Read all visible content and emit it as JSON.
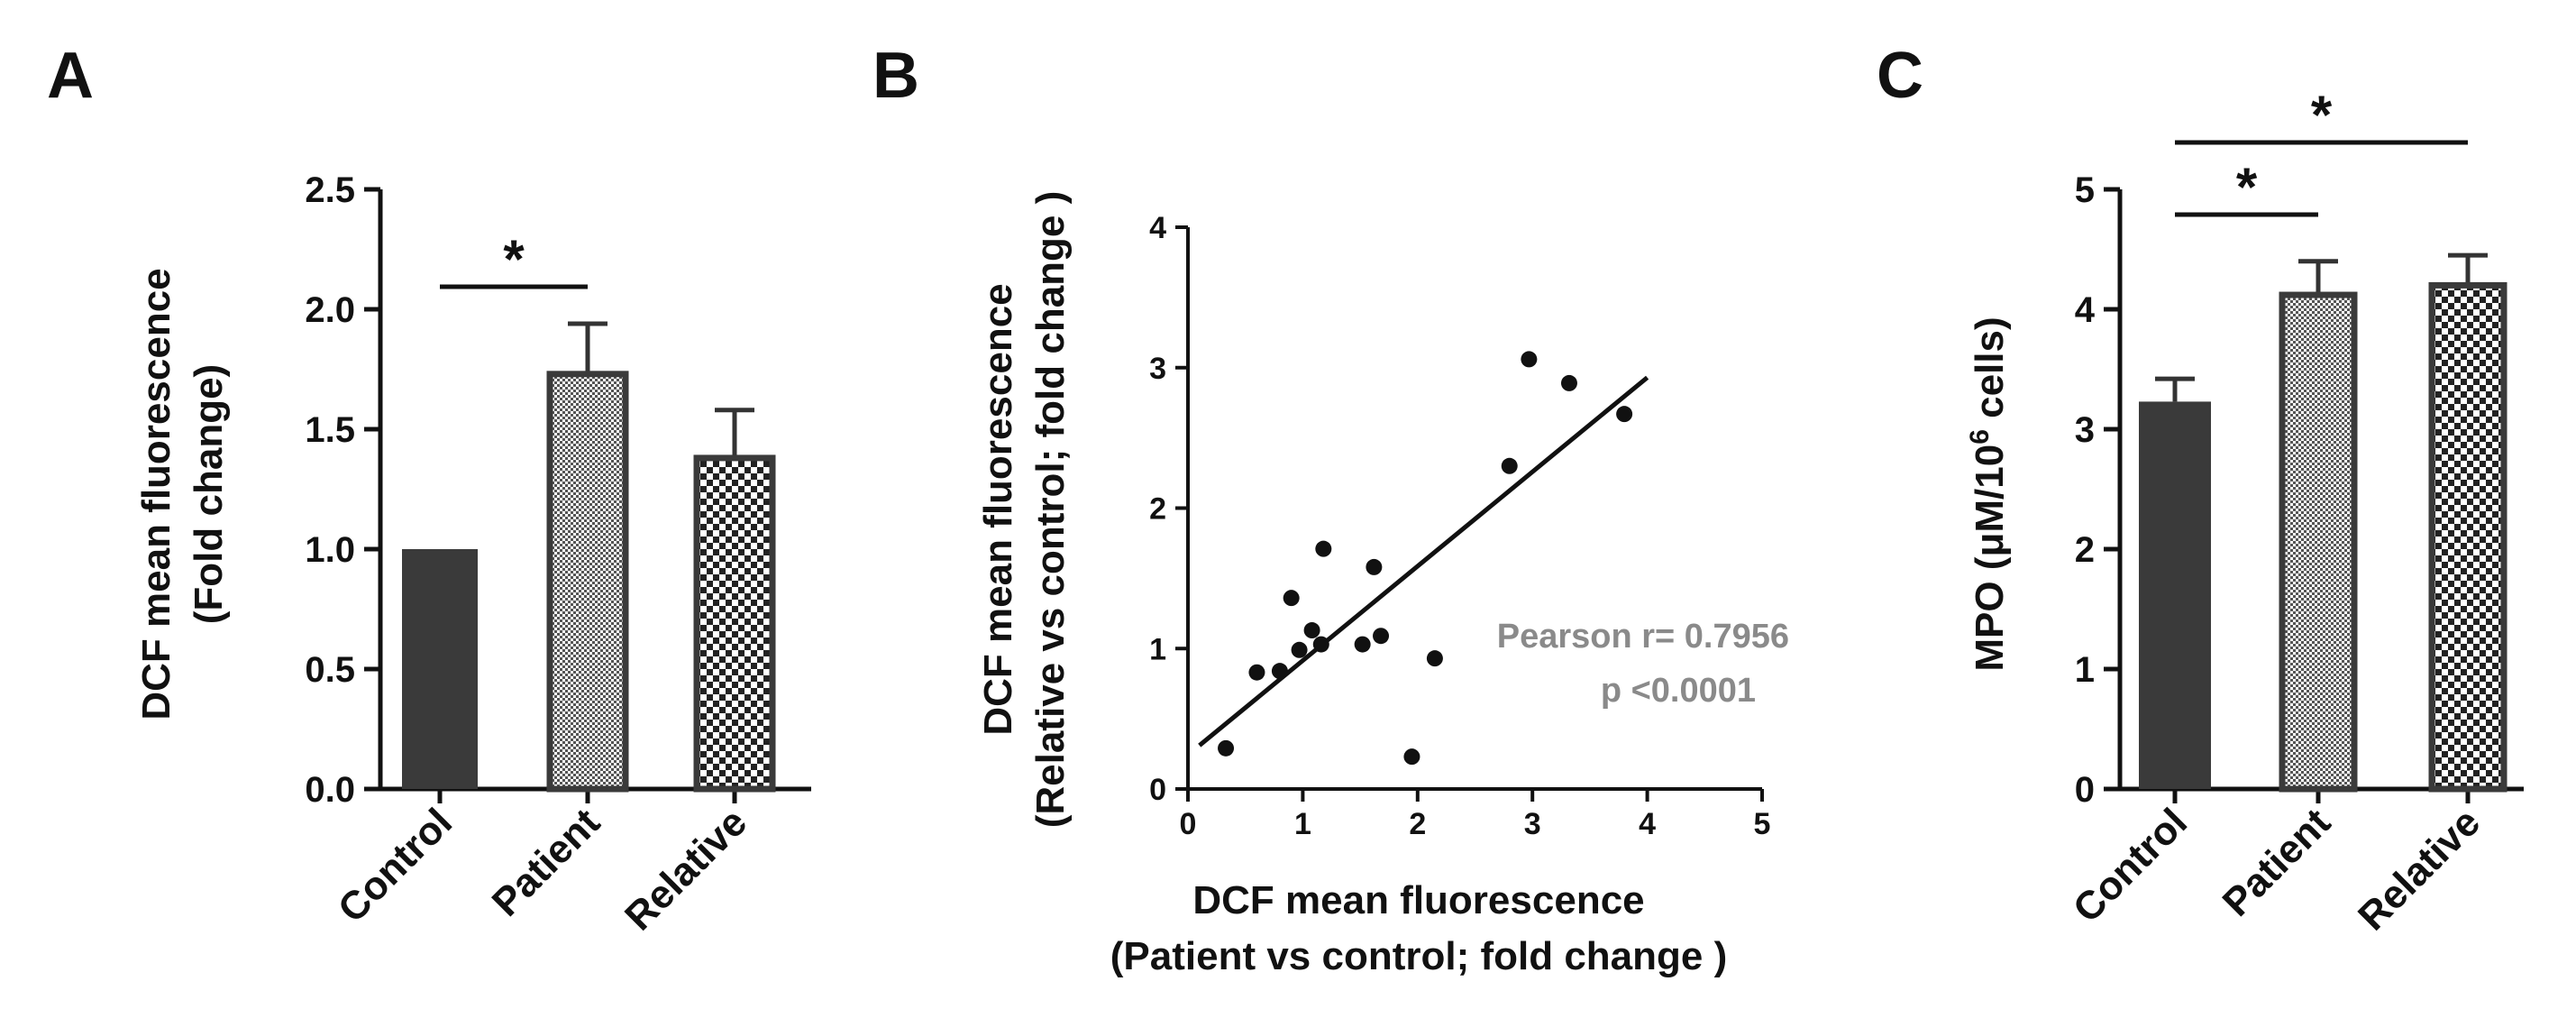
{
  "chart_data": [
    {
      "panel": "A",
      "type": "bar",
      "ylabel_line1": "DCF mean fluorescence",
      "ylabel_line2": "(Fold change)",
      "ylim": [
        0,
        2.5
      ],
      "yticks": [
        "0.0",
        "0.5",
        "1.0",
        "1.5",
        "2.0",
        "2.5"
      ],
      "categories": [
        "Control",
        "Patient",
        "Relative"
      ],
      "values": [
        1.0,
        1.73,
        1.38
      ],
      "errors": [
        0,
        0.21,
        0.2
      ],
      "fills": [
        "solid",
        "dots",
        "checker"
      ],
      "significance": [
        {
          "from": 0,
          "to": 1,
          "label": "*"
        }
      ]
    },
    {
      "panel": "B",
      "type": "scatter",
      "ylabel_line1": "DCF mean fluorescence",
      "ylabel_line2": "(Relative vs control; fold change )",
      "xlabel_line1": "DCF mean fluorescence",
      "xlabel_line2": "(Patient vs control; fold change )",
      "xlim": [
        0,
        5
      ],
      "ylim": [
        0,
        4
      ],
      "xticks": [
        "0",
        "1",
        "2",
        "3",
        "4",
        "5"
      ],
      "yticks": [
        "0",
        "1",
        "2",
        "3",
        "4"
      ],
      "points": [
        [
          0.33,
          0.29
        ],
        [
          0.6,
          0.83
        ],
        [
          0.8,
          0.84
        ],
        [
          0.9,
          1.36
        ],
        [
          0.97,
          0.99
        ],
        [
          1.08,
          1.13
        ],
        [
          1.16,
          1.03
        ],
        [
          1.18,
          1.71
        ],
        [
          1.52,
          1.03
        ],
        [
          1.62,
          1.58
        ],
        [
          1.68,
          1.09
        ],
        [
          1.95,
          0.23
        ],
        [
          2.15,
          0.93
        ],
        [
          2.8,
          2.3
        ],
        [
          2.97,
          3.06
        ],
        [
          3.32,
          2.89
        ],
        [
          3.8,
          2.67
        ]
      ],
      "fit_line": {
        "x": [
          0.1,
          4.0
        ],
        "y": [
          0.31,
          2.93
        ]
      },
      "annotation_line1": "Pearson r= 0.7956",
      "annotation_line2": "p <0.0001"
    },
    {
      "panel": "C",
      "type": "bar",
      "ylabel_main": "MPO (μM/10",
      "ylabel_sup": "6",
      "ylabel_tail": " cells)",
      "ylim": [
        0,
        5
      ],
      "yticks": [
        "0",
        "1",
        "2",
        "3",
        "4",
        "5"
      ],
      "categories": [
        "Control",
        "Patient",
        "Relative"
      ],
      "values": [
        3.23,
        4.12,
        4.2
      ],
      "errors": [
        0.19,
        0.28,
        0.25
      ],
      "fills": [
        "solid",
        "dots",
        "checker"
      ],
      "significance": [
        {
          "from": 0,
          "to": 1,
          "label": "*"
        },
        {
          "from": 0,
          "to": 2,
          "label": "*"
        }
      ]
    }
  ]
}
